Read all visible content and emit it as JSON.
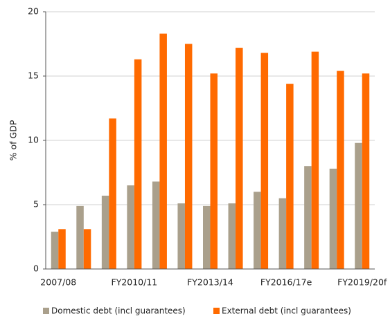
{
  "chart_data": {
    "type": "bar",
    "y_label": "% of GDP",
    "categories": [
      "2007/08",
      null,
      null,
      "FY2010/11",
      null,
      null,
      "FY2013/14",
      null,
      null,
      "FY2016/17e",
      null,
      null,
      "FY2019/20f"
    ],
    "series": [
      {
        "name": "Domestic debt (incl guarantees)",
        "color": "#aaa08c",
        "values": [
          2.9,
          4.9,
          5.7,
          6.5,
          6.8,
          5.1,
          4.9,
          5.1,
          6.0,
          5.5,
          8.0,
          7.8,
          9.8
        ]
      },
      {
        "name": "External debt (incl guarantees)",
        "color": "#ff6a00",
        "values": [
          3.1,
          3.1,
          11.7,
          16.3,
          18.3,
          17.5,
          15.2,
          17.2,
          16.8,
          14.4,
          16.9,
          15.4,
          15.2
        ]
      }
    ],
    "ylim": [
      0,
      20
    ],
    "yticks": [
      0,
      5,
      10,
      15,
      20
    ],
    "grid": true
  }
}
